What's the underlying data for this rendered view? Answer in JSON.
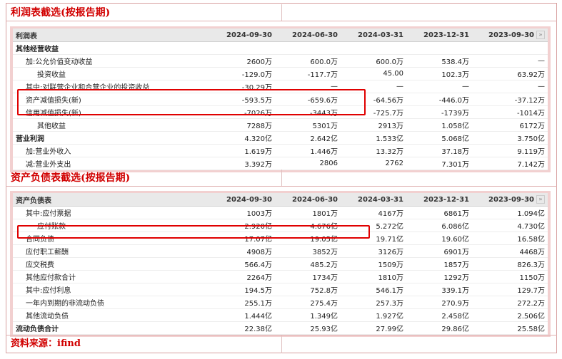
{
  "income": {
    "section_title": "利润表截选(按报告期)",
    "header_label": "利润表",
    "columns": [
      "2024-09-30",
      "2024-06-30",
      "2024-03-31",
      "2023-12-31",
      "2023-09-30"
    ],
    "more_icon": "»",
    "rows": [
      {
        "label": "其他经营收益",
        "indent": 0,
        "bold": true,
        "values": [
          "",
          "",
          "",
          "",
          ""
        ]
      },
      {
        "label": "加:公允价值变动收益",
        "indent": 1,
        "bold": false,
        "values": [
          "2600万",
          "600.0万",
          "600.0万",
          "538.4万",
          "—"
        ]
      },
      {
        "label": "投资收益",
        "indent": 2,
        "bold": false,
        "values": [
          "-129.0万",
          "-117.7万",
          "45.00",
          "102.3万",
          "63.92万"
        ]
      },
      {
        "label": "其中:对联营企业和合营企业的投资收益",
        "indent": 1,
        "bold": false,
        "values": [
          "-30.29万",
          "—",
          "—",
          "—",
          "—"
        ]
      },
      {
        "label": "资产减值损失(新)",
        "indent": 1,
        "bold": false,
        "values": [
          "-593.5万",
          "-659.6万",
          "-64.56万",
          "-446.0万",
          "-37.12万"
        ]
      },
      {
        "label": "信用减值损失(新)",
        "indent": 1,
        "bold": false,
        "values": [
          "-7026万",
          "-3443万",
          "-725.7万",
          "-1739万",
          "-1014万"
        ]
      },
      {
        "label": "其他收益",
        "indent": 2,
        "bold": false,
        "values": [
          "7288万",
          "5301万",
          "2913万",
          "1.058亿",
          "6172万"
        ]
      },
      {
        "label": "营业利润",
        "indent": 0,
        "bold": true,
        "values": [
          "4.320亿",
          "2.642亿",
          "1.533亿",
          "5.068亿",
          "3.750亿"
        ]
      },
      {
        "label": "加:营业外收入",
        "indent": 1,
        "bold": false,
        "values": [
          "1.619万",
          "1.446万",
          "13.32万",
          "37.18万",
          "9.119万"
        ]
      },
      {
        "label": "减:营业外支出",
        "indent": 1,
        "bold": false,
        "values": [
          "3.392万",
          "2806",
          "2762",
          "7.301万",
          "7.142万"
        ]
      }
    ]
  },
  "balance": {
    "section_title": "资产负债表截选(按报告期)",
    "header_label": "资产负债表",
    "columns": [
      "2024-09-30",
      "2024-06-30",
      "2024-03-31",
      "2023-12-31",
      "2023-09-30"
    ],
    "more_icon": "»",
    "rows": [
      {
        "label": "其中:应付票据",
        "indent": 1,
        "bold": false,
        "values": [
          "1003万",
          "1801万",
          "4167万",
          "6861万",
          "1.094亿"
        ]
      },
      {
        "label": "应付账款",
        "indent": 2,
        "bold": false,
        "values": [
          "2.920亿",
          "4.676亿",
          "5.272亿",
          "6.086亿",
          "4.730亿"
        ]
      },
      {
        "label": "合同负债",
        "indent": 1,
        "bold": false,
        "values": [
          "17.07亿",
          "19.05亿",
          "19.71亿",
          "19.60亿",
          "16.58亿"
        ]
      },
      {
        "label": "应付职工薪酬",
        "indent": 1,
        "bold": false,
        "values": [
          "4908万",
          "3852万",
          "3126万",
          "6901万",
          "4468万"
        ]
      },
      {
        "label": "应交税费",
        "indent": 1,
        "bold": false,
        "values": [
          "566.4万",
          "485.2万",
          "1509万",
          "1857万",
          "826.3万"
        ]
      },
      {
        "label": "其他应付款合计",
        "indent": 1,
        "bold": false,
        "values": [
          "2264万",
          "1734万",
          "1810万",
          "1292万",
          "1150万"
        ]
      },
      {
        "label": "其中:应付利息",
        "indent": 1,
        "bold": false,
        "values": [
          "194.5万",
          "752.8万",
          "546.1万",
          "339.1万",
          "129.7万"
        ]
      },
      {
        "label": "一年内到期的非流动负债",
        "indent": 1,
        "bold": false,
        "values": [
          "255.1万",
          "275.4万",
          "257.3万",
          "270.9万",
          "272.2万"
        ]
      },
      {
        "label": "其他流动负债",
        "indent": 1,
        "bold": false,
        "values": [
          "1.444亿",
          "1.349亿",
          "1.927亿",
          "2.458亿",
          "2.506亿"
        ]
      },
      {
        "label": "流动负债合计",
        "indent": 0,
        "bold": true,
        "values": [
          "22.38亿",
          "25.93亿",
          "27.99亿",
          "29.86亿",
          "25.58亿"
        ]
      }
    ]
  },
  "footer": {
    "source": "资料来源：ifind"
  },
  "colors": {
    "title_red": "#d10000",
    "highlight_red": "#e00000",
    "panel_pink": "#f2d0d0"
  }
}
